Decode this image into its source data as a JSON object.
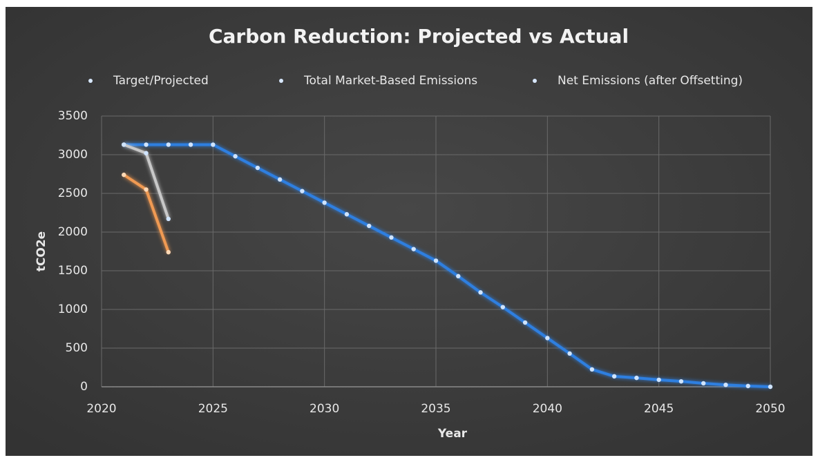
{
  "chart_data": {
    "type": "line",
    "title": "Carbon Reduction: Projected vs Actual",
    "x_label": "Year",
    "y_label": "tCO2e",
    "x": [
      2021,
      2022,
      2023,
      2024,
      2025,
      2026,
      2027,
      2028,
      2029,
      2030,
      2031,
      2032,
      2033,
      2034,
      2035,
      2036,
      2037,
      2038,
      2039,
      2040,
      2041,
      2042,
      2043,
      2044,
      2045,
      2046,
      2047,
      2048,
      2049,
      2050
    ],
    "series": [
      {
        "name": "Target/Projected",
        "color": "#2f7fe0",
        "values": [
          3130,
          3130,
          3130,
          3130,
          3130,
          2980,
          2830,
          2680,
          2530,
          2380,
          2230,
          2080,
          1930,
          1780,
          1630,
          1430,
          1220,
          1030,
          830,
          630,
          430,
          225,
          135,
          115,
          90,
          70,
          45,
          25,
          10,
          0
        ]
      },
      {
        "name": "Total Market-Based Emissions",
        "color": "#c8c8c8",
        "values": [
          3130,
          3020,
          2170,
          null,
          null,
          null,
          null,
          null,
          null,
          null,
          null,
          null,
          null,
          null,
          null,
          null,
          null,
          null,
          null,
          null,
          null,
          null,
          null,
          null,
          null,
          null,
          null,
          null,
          null,
          null
        ]
      },
      {
        "name": "Net Emissions (after Offsetting)",
        "color": "#f09a52",
        "values": [
          2740,
          2550,
          1740,
          null,
          null,
          null,
          null,
          null,
          null,
          null,
          null,
          null,
          null,
          null,
          null,
          null,
          null,
          null,
          null,
          null,
          null,
          null,
          null,
          null,
          null,
          null,
          null,
          null,
          null,
          null
        ]
      }
    ],
    "xlim": [
      2020,
      2050
    ],
    "xticks": [
      2020,
      2025,
      2030,
      2035,
      2040,
      2045,
      2050
    ],
    "ylim": [
      0,
      3500
    ],
    "yticks": [
      0,
      500,
      1000,
      1500,
      2000,
      2500,
      3000,
      3500
    ],
    "grid": true,
    "legend": "top"
  }
}
